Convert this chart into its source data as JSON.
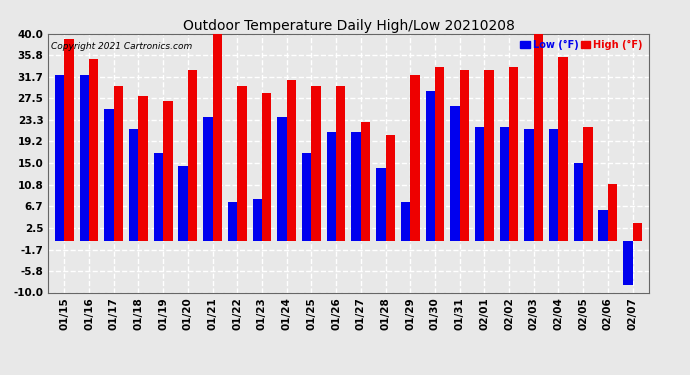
{
  "title": "Outdoor Temperature Daily High/Low 20210208",
  "copyright": "Copyright 2021 Cartronics.com",
  "dates": [
    "01/15",
    "01/16",
    "01/17",
    "01/18",
    "01/19",
    "01/20",
    "01/21",
    "01/22",
    "01/23",
    "01/24",
    "01/25",
    "01/26",
    "01/27",
    "01/28",
    "01/29",
    "01/30",
    "01/31",
    "02/01",
    "02/02",
    "02/03",
    "02/04",
    "02/05",
    "02/06",
    "02/07"
  ],
  "high": [
    39.0,
    35.2,
    30.0,
    28.0,
    27.0,
    33.0,
    41.5,
    30.0,
    28.5,
    31.0,
    30.0,
    30.0,
    23.0,
    20.5,
    32.0,
    33.5,
    33.0,
    33.0,
    33.5,
    40.5,
    35.5,
    22.0,
    11.0,
    3.5
  ],
  "low": [
    32.0,
    32.0,
    25.5,
    21.5,
    17.0,
    14.5,
    24.0,
    7.5,
    8.0,
    24.0,
    17.0,
    21.0,
    21.0,
    14.0,
    7.5,
    29.0,
    26.0,
    22.0,
    22.0,
    21.5,
    21.5,
    15.0,
    6.0,
    -8.5
  ],
  "yticks": [
    40.0,
    35.8,
    31.7,
    27.5,
    23.3,
    19.2,
    15.0,
    10.8,
    6.7,
    2.5,
    -1.7,
    -5.8,
    -10.0
  ],
  "ymin": -10.0,
  "ymax": 40.0,
  "bar_width": 0.38,
  "low_color": "#0000ee",
  "high_color": "#ee0000",
  "bg_color": "#e8e8e8",
  "plot_bg_color": "#e8e8e8",
  "grid_color": "#ffffff",
  "title_fontsize": 10,
  "tick_fontsize": 7.5,
  "copyright_fontsize": 6.5
}
